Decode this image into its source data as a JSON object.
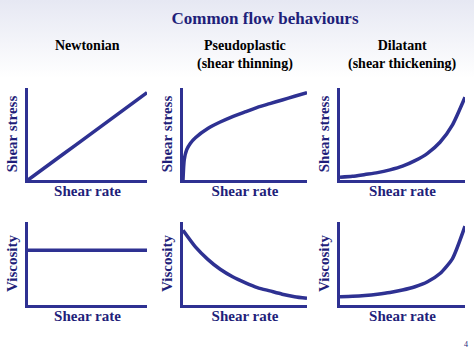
{
  "title": "Common flow behaviours",
  "page_number": "4",
  "chart_data": [
    {
      "type": "line",
      "title": [
        "Newtonian"
      ],
      "xlabel": "Shear rate",
      "ylabel": "Shear stress",
      "color": "#2e3192",
      "tick_labels": false,
      "grid": false,
      "xlim": [
        0,
        10
      ],
      "ylim": [
        0,
        10
      ],
      "x": [
        0,
        2,
        4,
        6,
        8,
        10
      ],
      "values": [
        0,
        1.9,
        3.8,
        5.7,
        7.6,
        9.5
      ]
    },
    {
      "type": "line",
      "title": [
        "Pseudoplastic",
        "(shear thinning)"
      ],
      "xlabel": "Shear rate",
      "ylabel": "Shear stress",
      "color": "#2e3192",
      "tick_labels": false,
      "grid": false,
      "xlim": [
        0,
        10
      ],
      "ylim": [
        0,
        10
      ],
      "x": [
        0,
        0.1,
        0.3,
        0.6,
        1,
        2,
        3,
        4,
        5,
        6,
        7,
        8,
        9,
        10
      ],
      "values": [
        0,
        2.2,
        3.3,
        4.0,
        4.6,
        5.6,
        6.3,
        6.9,
        7.4,
        7.9,
        8.3,
        8.7,
        9.1,
        9.5
      ]
    },
    {
      "type": "line",
      "title": [
        "Dilatant",
        "(shear thickening)"
      ],
      "xlabel": "Shear rate",
      "ylabel": "Shear stress",
      "color": "#2e3192",
      "tick_labels": false,
      "grid": false,
      "xlim": [
        0,
        10
      ],
      "ylim": [
        0,
        10
      ],
      "x": [
        0,
        1,
        2,
        3,
        4,
        5,
        6,
        7,
        8,
        9,
        10
      ],
      "values": [
        0.3,
        0.4,
        0.6,
        0.8,
        1.1,
        1.5,
        2.1,
        2.9,
        4.1,
        6.0,
        9.0
      ]
    },
    {
      "type": "line",
      "xlabel": "Shear rate",
      "ylabel": "Viscosity",
      "color": "#2e3192",
      "tick_labels": false,
      "grid": false,
      "xlim": [
        0,
        10
      ],
      "ylim": [
        0,
        10
      ],
      "x": [
        0,
        2,
        4,
        6,
        8,
        10
      ],
      "values": [
        6.6,
        6.6,
        6.6,
        6.6,
        6.6,
        6.6
      ]
    },
    {
      "type": "line",
      "xlabel": "Shear rate",
      "ylabel": "Viscosity",
      "color": "#2e3192",
      "tick_labels": false,
      "grid": false,
      "xlim": [
        0,
        10
      ],
      "ylim": [
        0,
        10
      ],
      "x": [
        0,
        1,
        2,
        3,
        4,
        5,
        6,
        7,
        8,
        9,
        10
      ],
      "values": [
        9.0,
        7.0,
        5.5,
        4.3,
        3.4,
        2.7,
        2.1,
        1.7,
        1.3,
        1.0,
        0.8
      ]
    },
    {
      "type": "line",
      "xlabel": "Shear rate",
      "ylabel": "Viscosity",
      "color": "#2e3192",
      "tick_labels": false,
      "grid": false,
      "xlim": [
        0,
        10
      ],
      "ylim": [
        0,
        10
      ],
      "x": [
        0,
        1,
        2,
        3,
        4,
        5,
        6,
        7,
        8,
        9,
        10
      ],
      "values": [
        1.0,
        1.05,
        1.15,
        1.3,
        1.5,
        1.8,
        2.2,
        2.8,
        3.8,
        5.6,
        9.5
      ]
    }
  ]
}
